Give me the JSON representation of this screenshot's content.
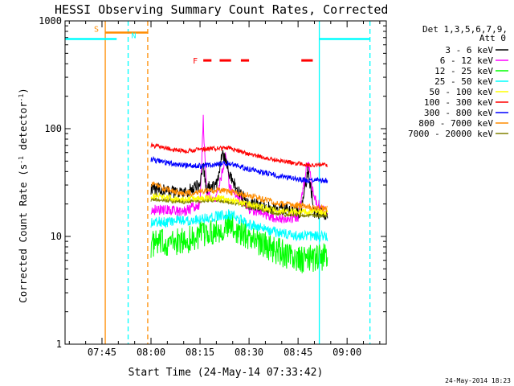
{
  "chart_data": {
    "type": "line",
    "title": "HESSI Observing Summary Count Rates, Corrected",
    "xlabel": "Start Time (24-May-14 07:33:42)",
    "ylabel": "Corrected Count Rate (s⁻¹ detector⁻¹)",
    "ylabel_main": "Corrected Count Rate (s",
    "ylabel_sup1": "-1",
    "ylabel_mid": " detector",
    "ylabel_sup2": "-1",
    "ylabel_end": ")",
    "x_unit": "minutes",
    "xlim": [
      "07:33:42",
      "09:12:00"
    ],
    "ylim": [
      1,
      1000
    ],
    "yscale": "log",
    "y_ticks": [
      {
        "v": 1,
        "label": "1"
      },
      {
        "v": 10,
        "label": "10"
      },
      {
        "v": 100,
        "label": "100"
      },
      {
        "v": 1000,
        "label": "1000"
      }
    ],
    "x_ticks": [
      {
        "t": "07:45",
        "label": "07:45"
      },
      {
        "t": "08:00",
        "label": "08:00"
      },
      {
        "t": "08:15",
        "label": "08:15"
      },
      {
        "t": "08:30",
        "label": "08:30"
      },
      {
        "t": "08:45",
        "label": "08:45"
      },
      {
        "t": "09:00",
        "label": "09:00"
      }
    ],
    "legend_title": [
      "Det 1,3,5,6,7,9,",
      "Att 0"
    ],
    "legend_position": "right",
    "legend": [
      {
        "label": "3 - 6 keV",
        "color": "#000000"
      },
      {
        "label": "6 - 12 keV",
        "color": "#ff00ff"
      },
      {
        "label": "12 - 25 keV",
        "color": "#00ff00"
      },
      {
        "label": "25 - 50 keV",
        "color": "#00ffff"
      },
      {
        "label": "50 - 100 keV",
        "color": "#ffff00"
      },
      {
        "label": "100 - 300 keV",
        "color": "#ff0000"
      },
      {
        "label": "300 - 800 keV",
        "color": "#0000ff"
      },
      {
        "label": "800 - 7000 keV",
        "color": "#ff8c00"
      },
      {
        "label": "7000 - 20000 keV",
        "color": "#808000"
      }
    ],
    "series_window": [
      "08:00",
      "08:54"
    ],
    "series": [
      {
        "label": "12 - 25 keV",
        "color": "#00ff00",
        "noise": 0.13,
        "points": [
          [
            "08:00",
            8.5
          ],
          [
            "08:10",
            9
          ],
          [
            "08:18",
            11
          ],
          [
            "08:24",
            12.5
          ],
          [
            "08:30",
            10
          ],
          [
            "08:38",
            7.5
          ],
          [
            "08:45",
            6
          ],
          [
            "08:54",
            6.5
          ]
        ]
      },
      {
        "label": "25 - 50 keV",
        "color": "#00ffff",
        "noise": 0.05,
        "points": [
          [
            "08:00",
            13.5
          ],
          [
            "08:10",
            14
          ],
          [
            "08:18",
            15
          ],
          [
            "08:24",
            16
          ],
          [
            "08:30",
            13
          ],
          [
            "08:38",
            11
          ],
          [
            "08:45",
            10
          ],
          [
            "08:54",
            10
          ]
        ]
      },
      {
        "label": "6 - 12 keV",
        "color": "#ff00ff",
        "noise": 0.05,
        "points": [
          [
            "08:00",
            18
          ],
          [
            "08:10",
            17
          ],
          [
            "08:15",
            20
          ],
          [
            "08:16",
            120
          ],
          [
            "08:17",
            25
          ],
          [
            "08:20",
            22
          ],
          [
            "08:23",
            60
          ],
          [
            "08:24",
            28
          ],
          [
            "08:30",
            18
          ],
          [
            "08:38",
            15
          ],
          [
            "08:45",
            15
          ],
          [
            "08:48",
            50
          ],
          [
            "08:50",
            22
          ],
          [
            "08:54",
            16
          ]
        ]
      },
      {
        "label": "3 - 6 keV",
        "color": "#000000",
        "noise": 0.06,
        "points": [
          [
            "08:00",
            28
          ],
          [
            "08:05",
            26
          ],
          [
            "08:10",
            25
          ],
          [
            "08:15",
            30
          ],
          [
            "08:16",
            45
          ],
          [
            "08:17",
            28
          ],
          [
            "08:20",
            30
          ],
          [
            "08:22",
            60
          ],
          [
            "08:24",
            38
          ],
          [
            "08:26",
            28
          ],
          [
            "08:30",
            20
          ],
          [
            "08:40",
            18
          ],
          [
            "08:46",
            17
          ],
          [
            "08:48",
            40
          ],
          [
            "08:50",
            17
          ],
          [
            "08:54",
            16
          ]
        ]
      },
      {
        "label": "7000 - 20000 keV",
        "color": "#808000",
        "noise": 0.02,
        "points": [
          [
            "08:00",
            22
          ],
          [
            "08:10",
            21
          ],
          [
            "08:20",
            22
          ],
          [
            "08:30",
            19
          ],
          [
            "08:40",
            16
          ],
          [
            "08:54",
            15.5
          ]
        ]
      },
      {
        "label": "50 - 100 keV",
        "color": "#ffff00",
        "noise": 0.03,
        "points": [
          [
            "08:00",
            24
          ],
          [
            "08:10",
            22
          ],
          [
            "08:20",
            23
          ],
          [
            "08:30",
            20
          ],
          [
            "08:40",
            17
          ],
          [
            "08:54",
            17
          ]
        ]
      },
      {
        "label": "800 - 7000 keV",
        "color": "#ff8c00",
        "noise": 0.03,
        "points": [
          [
            "08:00",
            31
          ],
          [
            "08:05",
            27
          ],
          [
            "08:10",
            25
          ],
          [
            "08:20",
            27
          ],
          [
            "08:30",
            24
          ],
          [
            "08:40",
            20
          ],
          [
            "08:54",
            18
          ]
        ]
      },
      {
        "label": "300 - 800 keV",
        "color": "#0000ff",
        "noise": 0.025,
        "points": [
          [
            "08:00",
            52
          ],
          [
            "08:08",
            46
          ],
          [
            "08:15",
            45
          ],
          [
            "08:24",
            48
          ],
          [
            "08:30",
            42
          ],
          [
            "08:40",
            36
          ],
          [
            "08:48",
            33
          ],
          [
            "08:54",
            33
          ]
        ]
      },
      {
        "label": "100 - 300 keV",
        "color": "#ff0000",
        "noise": 0.02,
        "points": [
          [
            "08:00",
            70
          ],
          [
            "08:10",
            62
          ],
          [
            "08:17",
            65
          ],
          [
            "08:24",
            66
          ],
          [
            "08:30",
            58
          ],
          [
            "08:40",
            50
          ],
          [
            "08:48",
            46
          ],
          [
            "08:54",
            46
          ]
        ]
      }
    ],
    "orbit_segments": [
      {
        "name": "day",
        "color": "#00ffff",
        "level": 680,
        "ranges": [
          [
            "07:33:42",
            "07:49:30"
          ],
          [
            "08:51:30",
            "09:07:00"
          ]
        ]
      }
    ],
    "vertical_markers": [
      {
        "name": "saa-start",
        "t": "07:46",
        "color": "#ff8c00",
        "style": "solid"
      },
      {
        "name": "night-start",
        "t": "07:53",
        "color": "#00ffff",
        "style": "dashed"
      },
      {
        "name": "saa-end",
        "t": "07:59",
        "color": "#ff8c00",
        "style": "dashed"
      },
      {
        "name": "night-end",
        "t": "08:51:30",
        "color": "#00ffff",
        "style": "solid"
      },
      {
        "name": "next-night",
        "t": "09:07",
        "color": "#00ffff",
        "style": "dashed"
      }
    ],
    "saa_bar": {
      "label": "S",
      "color": "#ff8c00",
      "level": 780,
      "range": [
        "07:46",
        "07:59"
      ]
    },
    "night_label": {
      "label": "N",
      "color": "#00ffff"
    },
    "flare_bar": {
      "label": "F",
      "color": "#ff0000",
      "level": 430,
      "segments": [
        [
          "08:16",
          "08:18:30"
        ],
        [
          "08:21",
          "08:24:30"
        ],
        [
          "08:27:30",
          "08:30"
        ],
        [
          "08:46",
          "08:49:30"
        ]
      ]
    },
    "annotations": {
      "timestamp": "24-May-2014 18:23"
    }
  }
}
